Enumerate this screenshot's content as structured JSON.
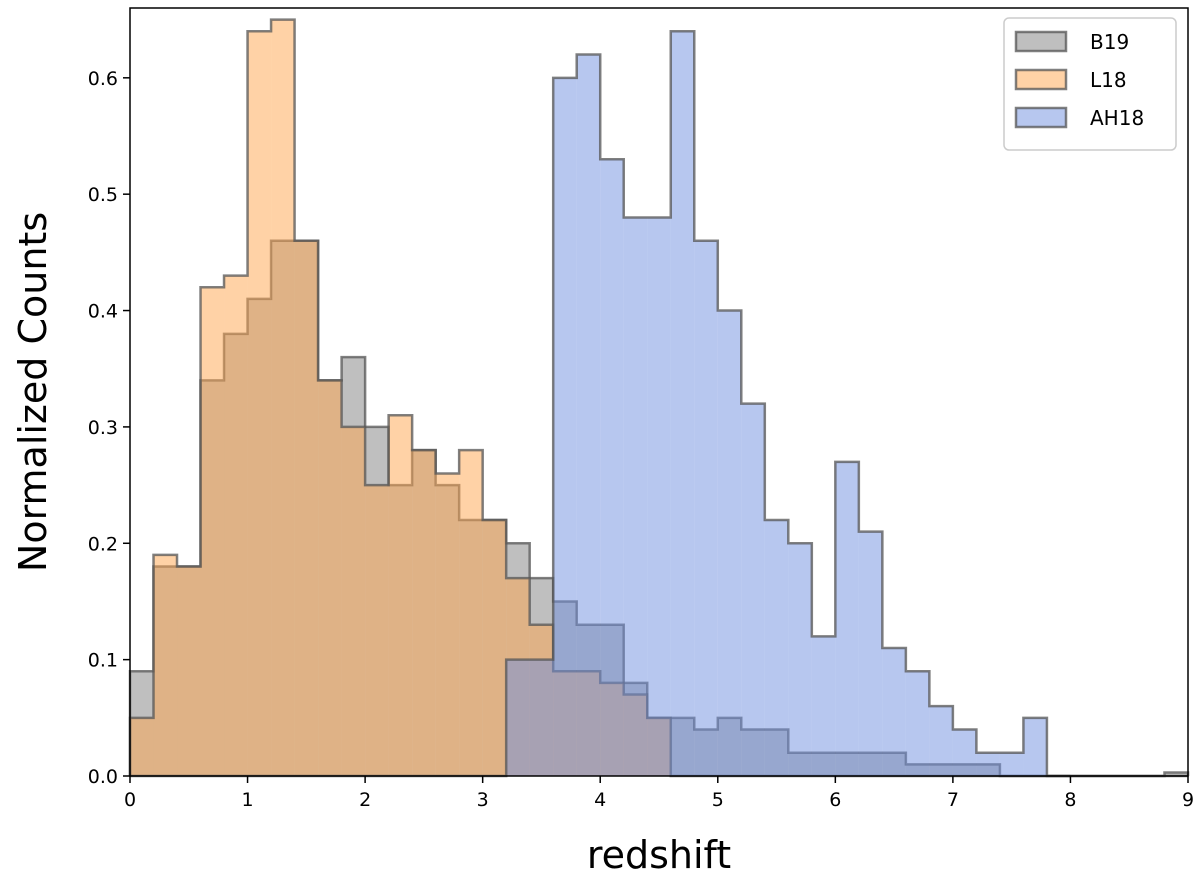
{
  "chart_data": {
    "type": "histogram",
    "xlabel": "redshift",
    "ylabel": "Normalized Counts",
    "xlim": [
      0,
      9
    ],
    "ylim": [
      0,
      0.66
    ],
    "xticks": [
      0,
      1,
      2,
      3,
      4,
      5,
      6,
      7,
      8,
      9
    ],
    "xtick_labels": [
      "0",
      "1",
      "2",
      "3",
      "4",
      "5",
      "6",
      "7",
      "8",
      "9"
    ],
    "yticks": [
      0.0,
      0.1,
      0.2,
      0.3,
      0.4,
      0.5,
      0.6
    ],
    "ytick_labels": [
      "0.0",
      "0.1",
      "0.2",
      "0.3",
      "0.4",
      "0.5",
      "0.6"
    ],
    "grid": false,
    "legend_position": "top-right",
    "bin_width": 0.2,
    "series": [
      {
        "name": "B19",
        "color": "#808080",
        "bin_start": 0,
        "values": [
          0.09,
          0.18,
          0.18,
          0.34,
          0.38,
          0.41,
          0.46,
          0.46,
          0.34,
          0.36,
          0.3,
          0.25,
          0.28,
          0.25,
          0.22,
          0.22,
          0.2,
          0.17,
          0.15,
          0.13,
          0.13,
          0.08,
          0.05,
          0.05,
          0.04,
          0.05,
          0.04,
          0.04,
          0.02,
          0.02,
          0.02,
          0.02,
          0.02,
          0.01,
          0.01,
          0.01,
          0.01,
          0.0,
          0.0,
          0.0,
          0.0,
          0.0,
          0.0,
          0.0,
          0.003,
          0.003,
          0.003,
          0.003,
          0.003,
          0.003,
          0.003,
          0.003,
          0.003,
          0.003,
          0.003,
          0.003,
          0.003,
          0.003,
          0.003,
          0.003,
          0.003,
          0.003,
          0.003,
          0.003,
          0.003,
          0.003,
          0.003,
          0.003,
          0.003,
          0.003,
          0.003,
          0.003,
          0.003,
          0.003,
          0.003,
          0.003,
          0.003,
          0.003,
          0.003,
          0.003,
          0.003,
          0.003,
          0.003,
          0.003,
          0.003,
          0.003,
          0.003,
          0.003,
          0.003,
          0.003
        ]
      },
      {
        "name": "L18",
        "color": "#ffa64d",
        "bin_start": 0,
        "values": [
          0.05,
          0.19,
          0.18,
          0.42,
          0.43,
          0.64,
          0.65,
          0.46,
          0.34,
          0.3,
          0.25,
          0.31,
          0.28,
          0.26,
          0.28,
          0.22,
          0.17,
          0.13,
          0.09,
          0.09,
          0.08,
          0.07,
          0.05,
          0.0,
          0.0,
          0.0,
          0.0,
          0.0,
          0.0,
          0.0,
          0.0,
          0.0,
          0.0,
          0.0,
          0.0,
          0.0,
          0.0,
          0.0,
          0.0,
          0.0,
          0.0,
          0.0,
          0.0,
          0.0,
          0.0
        ]
      },
      {
        "name": "AH18",
        "color": "#7090e0",
        "bin_start": 0,
        "values": [
          0,
          0,
          0,
          0,
          0,
          0,
          0,
          0,
          0,
          0,
          0,
          0,
          0,
          0,
          0,
          0,
          0.1,
          0.1,
          0.6,
          0.62,
          0.53,
          0.48,
          0.48,
          0.64,
          0.46,
          0.4,
          0.32,
          0.22,
          0.2,
          0.12,
          0.27,
          0.21,
          0.11,
          0.09,
          0.06,
          0.04,
          0.02,
          0.02,
          0.05,
          0.0
        ]
      }
    ]
  }
}
